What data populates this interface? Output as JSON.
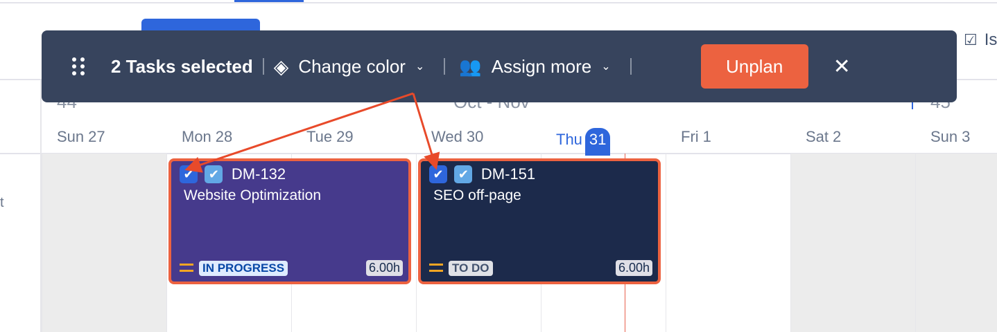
{
  "header": {
    "right_partial_label": "Is",
    "left_partial_label": "t"
  },
  "calendar": {
    "weeks": [
      {
        "label": "44"
      },
      {
        "label": "45"
      }
    ],
    "month_range": "Oct - Nov",
    "days": [
      {
        "name": "Sun",
        "num": "27",
        "weekend": true
      },
      {
        "name": "Mon",
        "num": "28"
      },
      {
        "name": "Tue",
        "num": "29"
      },
      {
        "name": "Wed",
        "num": "30"
      },
      {
        "name": "Thu",
        "num": "31",
        "today": true
      },
      {
        "name": "Fri",
        "num": "1"
      },
      {
        "name": "Sat",
        "num": "2",
        "weekend": true
      },
      {
        "name": "Sun",
        "num": "3",
        "weekend": true
      }
    ]
  },
  "toolbar": {
    "selected_label": "2 Tasks selected",
    "change_color": "Change color",
    "assign_more": "Assign more",
    "unplan": "Unplan"
  },
  "tasks": [
    {
      "key": "DM-132",
      "title": "Website Optimization",
      "status": "IN PROGRESS",
      "hours": "6.00h",
      "color": "#463a8c"
    },
    {
      "key": "DM-151",
      "title": "SEO off-page",
      "status": "TO DO",
      "hours": "6.00h",
      "color": "#1c2a4b"
    }
  ],
  "colors": {
    "accent": "#2e66dc",
    "unplan": "#ec6240",
    "toolbar": "#37445d",
    "annotation": "#e84a2a"
  }
}
